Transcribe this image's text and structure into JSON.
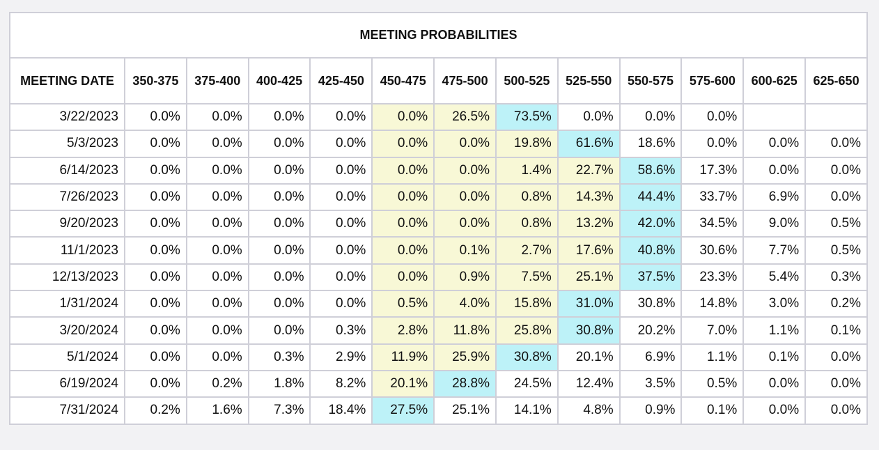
{
  "table": {
    "title": "MEETING PROBABILITIES",
    "header": [
      "MEETING DATE",
      "350-375",
      "375-400",
      "400-425",
      "425-450",
      "450-475",
      "475-500",
      "500-525",
      "525-550",
      "550-575",
      "575-600",
      "600-625",
      "625-650"
    ],
    "rows": [
      [
        "3/22/2023",
        "0.0%",
        "0.0%",
        "0.0%",
        "0.0%",
        "0.0%",
        "26.5%",
        "73.5%",
        "0.0%",
        "0.0%",
        "0.0%",
        null,
        null
      ],
      [
        "5/3/2023",
        "0.0%",
        "0.0%",
        "0.0%",
        "0.0%",
        "0.0%",
        "0.0%",
        "19.8%",
        "61.6%",
        "18.6%",
        "0.0%",
        "0.0%",
        "0.0%"
      ],
      [
        "6/14/2023",
        "0.0%",
        "0.0%",
        "0.0%",
        "0.0%",
        "0.0%",
        "0.0%",
        "1.4%",
        "22.7%",
        "58.6%",
        "17.3%",
        "0.0%",
        "0.0%"
      ],
      [
        "7/26/2023",
        "0.0%",
        "0.0%",
        "0.0%",
        "0.0%",
        "0.0%",
        "0.0%",
        "0.8%",
        "14.3%",
        "44.4%",
        "33.7%",
        "6.9%",
        "0.0%"
      ],
      [
        "9/20/2023",
        "0.0%",
        "0.0%",
        "0.0%",
        "0.0%",
        "0.0%",
        "0.0%",
        "0.8%",
        "13.2%",
        "42.0%",
        "34.5%",
        "9.0%",
        "0.5%"
      ],
      [
        "11/1/2023",
        "0.0%",
        "0.0%",
        "0.0%",
        "0.0%",
        "0.0%",
        "0.1%",
        "2.7%",
        "17.6%",
        "40.8%",
        "30.6%",
        "7.7%",
        "0.5%"
      ],
      [
        "12/13/2023",
        "0.0%",
        "0.0%",
        "0.0%",
        "0.0%",
        "0.0%",
        "0.9%",
        "7.5%",
        "25.1%",
        "37.5%",
        "23.3%",
        "5.4%",
        "0.3%"
      ],
      [
        "1/31/2024",
        "0.0%",
        "0.0%",
        "0.0%",
        "0.0%",
        "0.5%",
        "4.0%",
        "15.8%",
        "31.0%",
        "30.8%",
        "14.8%",
        "3.0%",
        "0.2%"
      ],
      [
        "3/20/2024",
        "0.0%",
        "0.0%",
        "0.0%",
        "0.3%",
        "2.8%",
        "11.8%",
        "25.8%",
        "30.8%",
        "20.2%",
        "7.0%",
        "1.1%",
        "0.1%"
      ],
      [
        "5/1/2024",
        "0.0%",
        "0.0%",
        "0.3%",
        "2.9%",
        "11.9%",
        "25.9%",
        "30.8%",
        "20.1%",
        "6.9%",
        "1.1%",
        "0.1%",
        "0.0%"
      ],
      [
        "6/19/2024",
        "0.0%",
        "0.2%",
        "1.8%",
        "8.2%",
        "20.1%",
        "28.8%",
        "24.5%",
        "12.4%",
        "3.5%",
        "0.5%",
        "0.0%",
        "0.0%"
      ],
      [
        "7/31/2024",
        "0.2%",
        "1.6%",
        "7.3%",
        "18.4%",
        "27.5%",
        "25.1%",
        "14.1%",
        "4.8%",
        "0.9%",
        "0.1%",
        "0.0%",
        "0.0%"
      ]
    ]
  }
}
